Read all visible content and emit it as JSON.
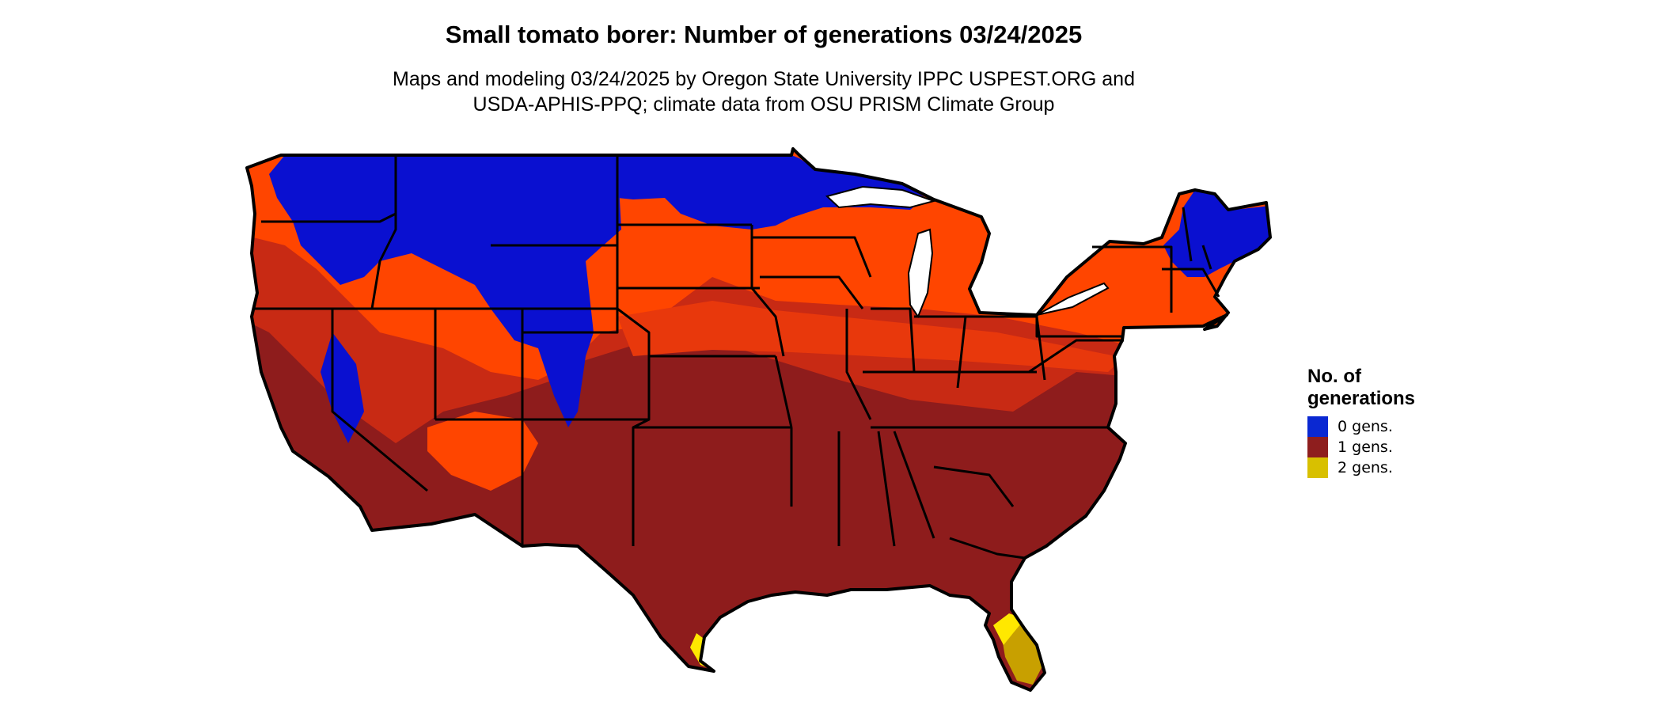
{
  "title": "Small tomato borer: Number of generations 03/24/2025",
  "subtitle_lines": [
    "Maps and modeling 03/24/2025 by Oregon State University IPPC USPEST.ORG and",
    "USDA-APHIS-PPQ; climate data from OSU PRISM Climate Group"
  ],
  "legend": {
    "title_lines": [
      "No. of",
      "generations"
    ],
    "items": [
      {
        "label": "0 gens.",
        "color": "#0a28d2"
      },
      {
        "label": "1 gens.",
        "color": "#8e1e1e"
      },
      {
        "label": "2 gens.",
        "color": "#d8c000"
      }
    ]
  },
  "colors": {
    "blue": "#0a10d0",
    "orange": "#ff4500",
    "orange_dark": "#e8380c",
    "red_orange": "#c82a14",
    "dark_red": "#8e1c1c",
    "yellow": "#ffe800",
    "gold": "#c8a000",
    "border": "#000000"
  }
}
